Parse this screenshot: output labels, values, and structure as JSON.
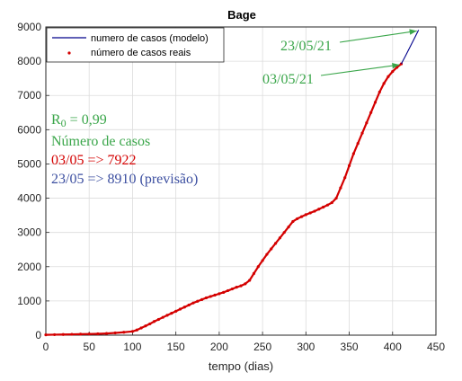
{
  "chart_data": {
    "type": "line",
    "title": "Bage",
    "xlabel": "tempo (dias)",
    "ylabel": "",
    "xlim": [
      0,
      450
    ],
    "ylim": [
      0,
      9000
    ],
    "xticks": [
      0,
      50,
      100,
      150,
      200,
      250,
      300,
      350,
      400,
      450
    ],
    "yticks": [
      0,
      1000,
      2000,
      3000,
      4000,
      5000,
      6000,
      7000,
      8000,
      9000
    ],
    "grid": true,
    "legend_position": "top-left",
    "series": [
      {
        "name": "numero de casos (modelo)",
        "style": "line",
        "color": "#00008b",
        "x": [
          410,
          415,
          420,
          425,
          430
        ],
        "y": [
          7922,
          8160,
          8410,
          8660,
          8910
        ]
      },
      {
        "name": "número de casos reais",
        "style": "points",
        "color": "#d40000",
        "x": [
          0,
          10,
          20,
          30,
          40,
          50,
          60,
          70,
          80,
          90,
          100,
          105,
          110,
          115,
          120,
          125,
          130,
          135,
          140,
          145,
          150,
          155,
          160,
          165,
          170,
          175,
          180,
          185,
          190,
          195,
          200,
          205,
          210,
          215,
          220,
          225,
          230,
          235,
          240,
          245,
          250,
          255,
          260,
          265,
          270,
          275,
          280,
          285,
          290,
          295,
          300,
          305,
          310,
          315,
          320,
          325,
          330,
          335,
          340,
          345,
          350,
          355,
          360,
          365,
          370,
          375,
          380,
          385,
          390,
          395,
          400,
          405,
          410
        ],
        "y": [
          10,
          15,
          20,
          25,
          30,
          35,
          40,
          50,
          65,
          85,
          110,
          150,
          210,
          270,
          330,
          400,
          460,
          520,
          580,
          640,
          700,
          760,
          820,
          880,
          940,
          990,
          1040,
          1090,
          1130,
          1170,
          1210,
          1250,
          1300,
          1350,
          1400,
          1440,
          1500,
          1600,
          1800,
          2000,
          2180,
          2360,
          2520,
          2680,
          2840,
          3000,
          3160,
          3320,
          3400,
          3460,
          3520,
          3570,
          3620,
          3680,
          3740,
          3800,
          3870,
          4000,
          4300,
          4600,
          4950,
          5300,
          5600,
          5900,
          6200,
          6500,
          6800,
          7100,
          7350,
          7550,
          7700,
          7820,
          7922
        ]
      }
    ],
    "annotations": [
      {
        "text": "23/05/21",
        "color": "#3aa64a",
        "target_x": 430,
        "target_y": 8910
      },
      {
        "text": "03/05/21",
        "color": "#3aa64a",
        "target_x": 410,
        "target_y": 7922
      }
    ],
    "notes": {
      "r0_prefix": "R",
      "r0_sub": "0",
      "r0_value": " = 0,99",
      "heading": "Número de casos",
      "line_0305": "03/05 => 7922",
      "line_2305": "23/05 => 8910 (previsão)",
      "r0_color": "#3aa64a",
      "heading_color": "#3aa64a",
      "line_0305_color": "#d40000",
      "line_2305_color": "#3b4ea0"
    }
  }
}
